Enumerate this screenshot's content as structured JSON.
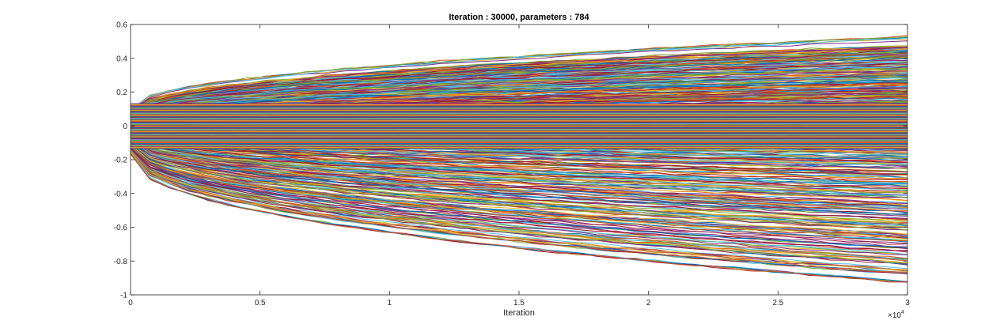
{
  "chart_data": {
    "type": "line",
    "title": "Iteration : 30000, parameters : 784",
    "xlabel": "Iteration",
    "ylabel": "",
    "xlim": [
      0,
      30000
    ],
    "ylim": [
      -1,
      0.6
    ],
    "x_exponent_label": "×10",
    "x_exponent_power": "4",
    "x_ticks": [
      {
        "value": 0,
        "label": "0"
      },
      {
        "value": 5000,
        "label": "0.5"
      },
      {
        "value": 10000,
        "label": "1"
      },
      {
        "value": 15000,
        "label": "1.5"
      },
      {
        "value": 20000,
        "label": "2"
      },
      {
        "value": 25000,
        "label": "2.5"
      },
      {
        "value": 30000,
        "label": "3"
      }
    ],
    "y_ticks": [
      {
        "value": 0.6,
        "label": "0.6"
      },
      {
        "value": 0.4,
        "label": "0.4"
      },
      {
        "value": 0.2,
        "label": "0.2"
      },
      {
        "value": 0,
        "label": "0"
      },
      {
        "value": -0.2,
        "label": "-0.2"
      },
      {
        "value": -0.4,
        "label": "-0.4"
      },
      {
        "value": -0.6,
        "label": "-0.6"
      },
      {
        "value": -0.8,
        "label": "-0.8"
      },
      {
        "value": -1,
        "label": "-1"
      }
    ],
    "grid": false,
    "legend": "none",
    "series_count": 784,
    "series_colors": [
      "#0072BD",
      "#D95319",
      "#EDB120",
      "#7E2F8E",
      "#77AC30",
      "#4DBEEE",
      "#A2142F"
    ],
    "x_samples": [
      0,
      750,
      1500,
      2250,
      3000,
      3750,
      4500,
      5250,
      6000,
      6750,
      7500,
      8250,
      9000,
      9750,
      10500,
      11250,
      12000,
      12750,
      13500,
      14250,
      15000,
      15750,
      16500,
      17250,
      18000,
      18750,
      19500,
      20250,
      21000,
      21750,
      22500,
      23250,
      24000,
      24750,
      25500,
      26250,
      27000,
      27750,
      28500,
      29250,
      30000
    ],
    "series_final_values": [
      0.52,
      0.47,
      0.46,
      0.45,
      0.44,
      0.43,
      0.42,
      0.41,
      0.4,
      0.39,
      0.38,
      0.37,
      0.36,
      0.35,
      0.34,
      0.33,
      0.32,
      0.31,
      0.3,
      0.29,
      0.28,
      0.27,
      0.26,
      0.25,
      0.24,
      0.23,
      0.22,
      0.21,
      0.2,
      0.19,
      0.18,
      0.17,
      0.16,
      0.15,
      0.14,
      0.13,
      0.12,
      0.11,
      0.1,
      0.09,
      0.08,
      0.07,
      0.06,
      0.05,
      0.04,
      0.03,
      0.02,
      0.01,
      0.0,
      -0.01,
      -0.02,
      -0.03,
      -0.04,
      -0.05,
      -0.06,
      -0.08,
      -0.1,
      -0.12,
      -0.14,
      -0.16,
      -0.18,
      -0.2,
      -0.22,
      -0.24,
      -0.26,
      -0.28,
      -0.3,
      -0.33,
      -0.36,
      -0.38,
      -0.4,
      -0.43,
      -0.46,
      -0.48,
      -0.5,
      -0.53,
      -0.56,
      -0.58,
      -0.61,
      -0.64,
      -0.66,
      -0.69,
      -0.72,
      -0.75,
      -0.78,
      -0.81,
      -0.85,
      -0.87,
      -0.92
    ]
  }
}
